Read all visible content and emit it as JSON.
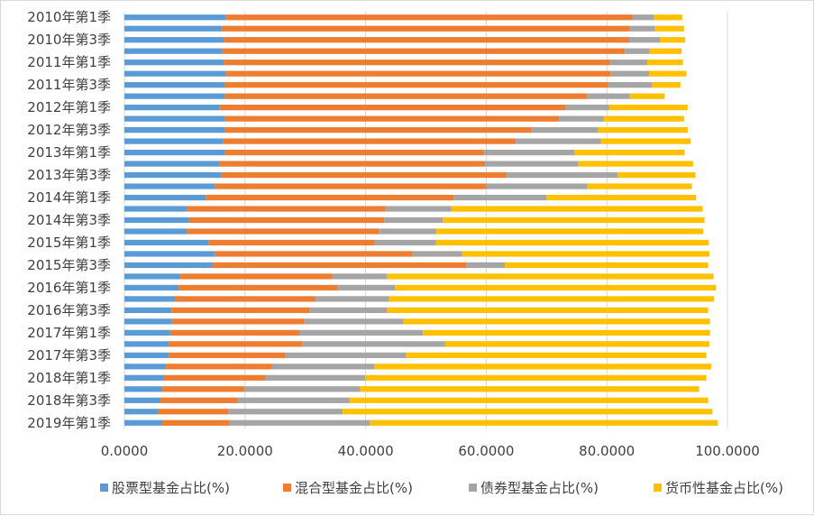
{
  "chart_data": {
    "type": "bar",
    "orientation": "horizontal",
    "stacked": true,
    "xlim": [
      0,
      100
    ],
    "x_ticks": [
      "0.0000",
      "20.0000",
      "40.0000",
      "60.0000",
      "80.0000",
      "100.0000"
    ],
    "grid": "vertical",
    "legend_position": "bottom",
    "categories": [
      "2010年第1季",
      "2010年第2季",
      "2010年第3季",
      "2010年第4季",
      "2011年第1季",
      "2011年第2季",
      "2011年第3季",
      "2011年第4季",
      "2012年第1季",
      "2012年第2季",
      "2012年第3季",
      "2012年第4季",
      "2013年第1季",
      "2013年第2季",
      "2013年第3季",
      "2013年第4季",
      "2014年第1季",
      "2014年第2季",
      "2014年第3季",
      "2014年第4季",
      "2015年第1季",
      "2015年第2季",
      "2015年第3季",
      "2015年第4季",
      "2016年第1季",
      "2016年第2季",
      "2016年第3季",
      "2016年第4季",
      "2017年第1季",
      "2017年第2季",
      "2017年第3季",
      "2017年第4季",
      "2018年第1季",
      "2018年第2季",
      "2018年第3季",
      "2018年第4季",
      "2019年第1季"
    ],
    "visible_category_labels": [
      "2010年第1季",
      "2010年第3季",
      "2011年第1季",
      "2011年第3季",
      "2012年第1季",
      "2012年第3季",
      "2013年第1季",
      "2013年第3季",
      "2014年第1季",
      "2014年第3季",
      "2015年第1季",
      "2015年第3季",
      "2016年第1季",
      "2016年第3季",
      "2017年第1季",
      "2017年第3季",
      "2018年第1季",
      "2018年第3季",
      "2019年第1季"
    ],
    "series": [
      {
        "name": "股票型基金占比(%)",
        "color": "#5b9bd5",
        "values": [
          16.8,
          16.0,
          16.5,
          16.2,
          16.5,
          16.8,
          16.6,
          16.7,
          15.8,
          16.6,
          16.6,
          16.3,
          16.6,
          15.7,
          16.1,
          15.0,
          13.5,
          10.3,
          10.7,
          10.4,
          14.0,
          15.0,
          14.5,
          9.3,
          9.0,
          8.3,
          7.8,
          7.9,
          7.6,
          7.3,
          7.3,
          6.9,
          6.5,
          6.3,
          5.9,
          5.6,
          6.2
        ]
      },
      {
        "name": "混合型基金占比(%)",
        "color": "#ed7d31",
        "values": [
          67.5,
          67.8,
          67.2,
          66.8,
          64.0,
          63.8,
          63.6,
          60.0,
          57.3,
          55.5,
          50.9,
          48.6,
          43.0,
          44.1,
          47.3,
          45.0,
          41.1,
          32.9,
          32.4,
          31.8,
          27.5,
          32.8,
          42.2,
          25.2,
          26.4,
          23.4,
          22.9,
          21.9,
          21.4,
          22.2,
          19.4,
          17.6,
          16.9,
          13.6,
          12.9,
          11.6,
          11.2
        ]
      },
      {
        "name": "债券型基金占比(%)",
        "color": "#a5a5a5",
        "values": [
          3.5,
          4.2,
          5.1,
          4.1,
          6.2,
          6.4,
          7.3,
          7.1,
          7.3,
          7.4,
          11.1,
          14.1,
          15.0,
          15.4,
          18.4,
          16.8,
          15.4,
          11.0,
          9.7,
          9.5,
          10.2,
          8.2,
          6.4,
          9.0,
          9.5,
          12.2,
          12.8,
          16.5,
          20.5,
          23.7,
          20.0,
          17.0,
          16.5,
          19.2,
          18.5,
          19.0,
          23.3
        ]
      },
      {
        "name": "货币性基金占比(%)",
        "color": "#ffc000",
        "values": [
          4.7,
          4.8,
          4.2,
          5.3,
          5.9,
          6.2,
          4.7,
          5.8,
          13.0,
          13.3,
          14.8,
          14.9,
          18.3,
          19.1,
          12.9,
          17.3,
          24.8,
          41.7,
          43.4,
          44.3,
          45.2,
          41.0,
          33.7,
          54.2,
          53.2,
          53.9,
          53.3,
          50.8,
          47.6,
          43.8,
          49.8,
          55.8,
          56.6,
          56.2,
          59.5,
          61.3,
          57.7
        ]
      }
    ]
  }
}
